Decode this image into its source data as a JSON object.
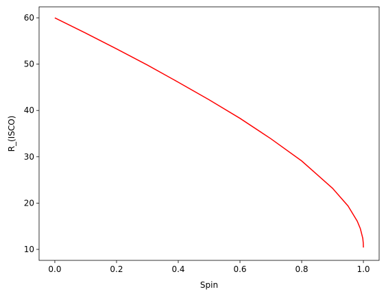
{
  "chart_data": {
    "type": "line",
    "xlabel": "Spin",
    "ylabel": "R_(ISCO)",
    "x": [
      0,
      0.1,
      0.2,
      0.3,
      0.4,
      0.5,
      0.6,
      0.7,
      0.8,
      0.9,
      0.95,
      0.98,
      0.99,
      0.998,
      0.9995,
      1.0
    ],
    "series": [
      {
        "color": "#ff0000",
        "values": [
          60,
          56.7,
          53.3,
          49.8,
          46.1,
          42.3,
          38.3,
          33.9,
          29.1,
          23.2,
          19.4,
          16.1,
          14.5,
          12.4,
          11.4,
          10.4
        ]
      }
    ],
    "xlim": [
      -0.051,
      1.051
    ],
    "ylim": [
      7.63,
      62.37
    ],
    "xticks": [
      {
        "value": 0,
        "label": "0.0"
      },
      {
        "value": 0.2,
        "label": "0.2"
      },
      {
        "value": 0.4,
        "label": "0.4"
      },
      {
        "value": 0.6,
        "label": "0.6"
      },
      {
        "value": 0.8,
        "label": "0.8"
      },
      {
        "value": 1,
        "label": "1.0"
      }
    ],
    "yticks": [
      10,
      20,
      30,
      40,
      50,
      60
    ]
  }
}
